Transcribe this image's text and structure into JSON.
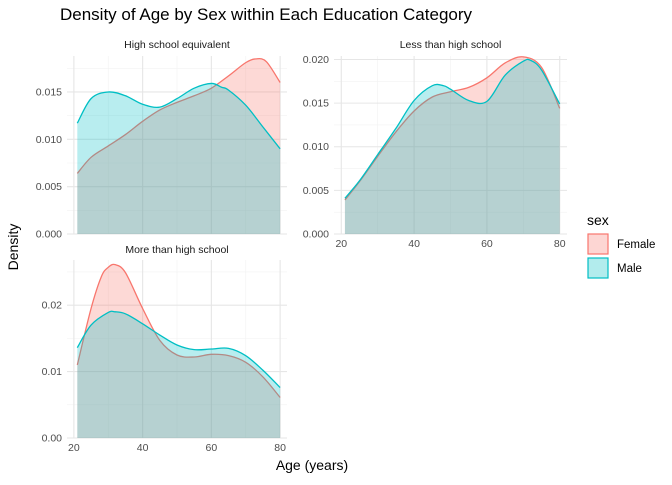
{
  "chart_data": {
    "type": "area",
    "title": "Density of Age by Sex within Each Education Category",
    "xlabel": "Age (years)",
    "ylabel": "Density",
    "legend": {
      "title": "sex",
      "position": "right",
      "entries": [
        {
          "label": "Female",
          "fill": "#F8766D",
          "stroke": "#F8766D"
        },
        {
          "label": "Male",
          "fill": "#00BFC4",
          "stroke": "#00BFC4"
        }
      ]
    },
    "grid": true,
    "xlim": [
      18,
      82
    ],
    "x_ticks": [
      20,
      40,
      60,
      80
    ],
    "panels": [
      {
        "title": "High school equivalent",
        "ylim": [
          0,
          0.0188
        ],
        "y_ticks": [
          0.0,
          0.005,
          0.01,
          0.015
        ],
        "y_tick_labels": [
          "0.000",
          "0.005",
          "0.010",
          "0.015"
        ],
        "show_x_ticks": false,
        "series": [
          {
            "name": "Female",
            "x": [
              21,
              25,
              30,
              35,
              40,
              45,
              50,
              55,
              60,
              65,
              70,
              73,
              76,
              80
            ],
            "y": [
              0.0064,
              0.0081,
              0.0093,
              0.0105,
              0.0119,
              0.0131,
              0.0139,
              0.0146,
              0.0154,
              0.0167,
              0.0181,
              0.0185,
              0.0182,
              0.016
            ]
          },
          {
            "name": "Male",
            "x": [
              21,
              25,
              30,
              35,
              40,
              45,
              50,
              55,
              60,
              63,
              65,
              70,
              75,
              80
            ],
            "y": [
              0.0117,
              0.0143,
              0.015,
              0.0146,
              0.0137,
              0.0134,
              0.0143,
              0.0154,
              0.0159,
              0.0155,
              0.0152,
              0.0136,
              0.0113,
              0.009
            ]
          }
        ]
      },
      {
        "title": "Less than high school",
        "ylim": [
          0,
          0.0204
        ],
        "y_ticks": [
          0.0,
          0.005,
          0.01,
          0.015,
          0.02
        ],
        "y_tick_labels": [
          "0.000",
          "0.005",
          "0.010",
          "0.015",
          "0.020"
        ],
        "show_x_ticks": true,
        "series": [
          {
            "name": "Female",
            "x": [
              21,
              25,
              30,
              35,
              40,
              45,
              50,
              55,
              60,
              65,
              70,
              75,
              80
            ],
            "y": [
              0.0039,
              0.006,
              0.0089,
              0.0117,
              0.0141,
              0.0157,
              0.0163,
              0.0168,
              0.0179,
              0.0196,
              0.0203,
              0.0191,
              0.0144
            ]
          },
          {
            "name": "Male",
            "x": [
              21,
              25,
              30,
              35,
              40,
              45,
              48,
              50,
              55,
              60,
              65,
              70,
              72,
              75,
              80
            ],
            "y": [
              0.0041,
              0.0061,
              0.0091,
              0.0121,
              0.0153,
              0.017,
              0.017,
              0.0166,
              0.0153,
              0.0152,
              0.0182,
              0.0198,
              0.0199,
              0.0188,
              0.0149
            ]
          }
        ]
      },
      {
        "title": "More than high school",
        "ylim": [
          0,
          0.0268
        ],
        "y_ticks": [
          0.0,
          0.01,
          0.02
        ],
        "y_tick_labels": [
          "0.00",
          "0.01",
          "0.02"
        ],
        "show_x_ticks": true,
        "series": [
          {
            "name": "Female",
            "x": [
              21,
              25,
              28,
              30,
              32,
              35,
              40,
              45,
              50,
              55,
              60,
              65,
              70,
              75,
              80
            ],
            "y": [
              0.011,
              0.0195,
              0.0243,
              0.0257,
              0.0261,
              0.0249,
              0.0195,
              0.0147,
              0.0125,
              0.0122,
              0.0126,
              0.0124,
              0.0114,
              0.0092,
              0.0061
            ]
          },
          {
            "name": "Male",
            "x": [
              21,
              25,
              30,
              32,
              35,
              40,
              45,
              50,
              55,
              60,
              65,
              70,
              75,
              80
            ],
            "y": [
              0.0136,
              0.017,
              0.0189,
              0.019,
              0.0187,
              0.0172,
              0.0155,
              0.014,
              0.0133,
              0.0134,
              0.0135,
              0.0124,
              0.0102,
              0.0076
            ]
          }
        ]
      }
    ]
  }
}
